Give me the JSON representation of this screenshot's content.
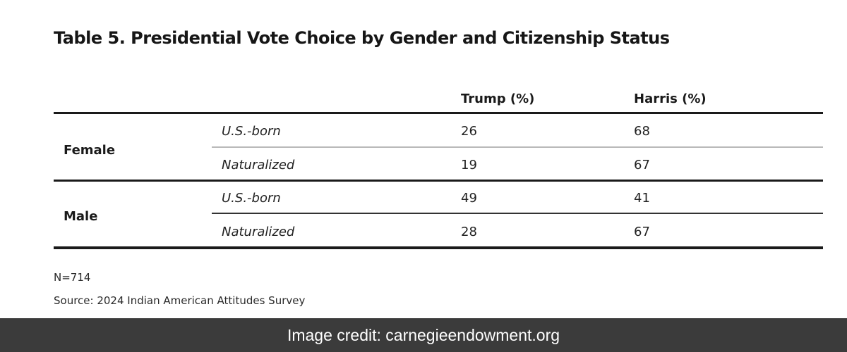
{
  "title": "Table 5. Presidential Vote Choice by Gender and Citizenship Status",
  "table": {
    "columns": [
      "Trump (%)",
      "Harris (%)"
    ],
    "groups": [
      {
        "label": "Female",
        "rows": [
          {
            "label": "U.S.-born",
            "trump": "26",
            "harris": "68"
          },
          {
            "label": "Naturalized",
            "trump": "19",
            "harris": "67"
          }
        ]
      },
      {
        "label": "Male",
        "rows": [
          {
            "label": "U.S.-born",
            "trump": "49",
            "harris": "41"
          },
          {
            "label": "Naturalized",
            "trump": "28",
            "harris": "67"
          }
        ]
      }
    ]
  },
  "notes": {
    "n": "N=714",
    "source": "Source: 2024 Indian American Attitudes Survey"
  },
  "credit": "Image credit: carnegieendowment.org",
  "colors": {
    "rule": "#1a1a1a",
    "credit_bar": "#3b3b3b"
  }
}
